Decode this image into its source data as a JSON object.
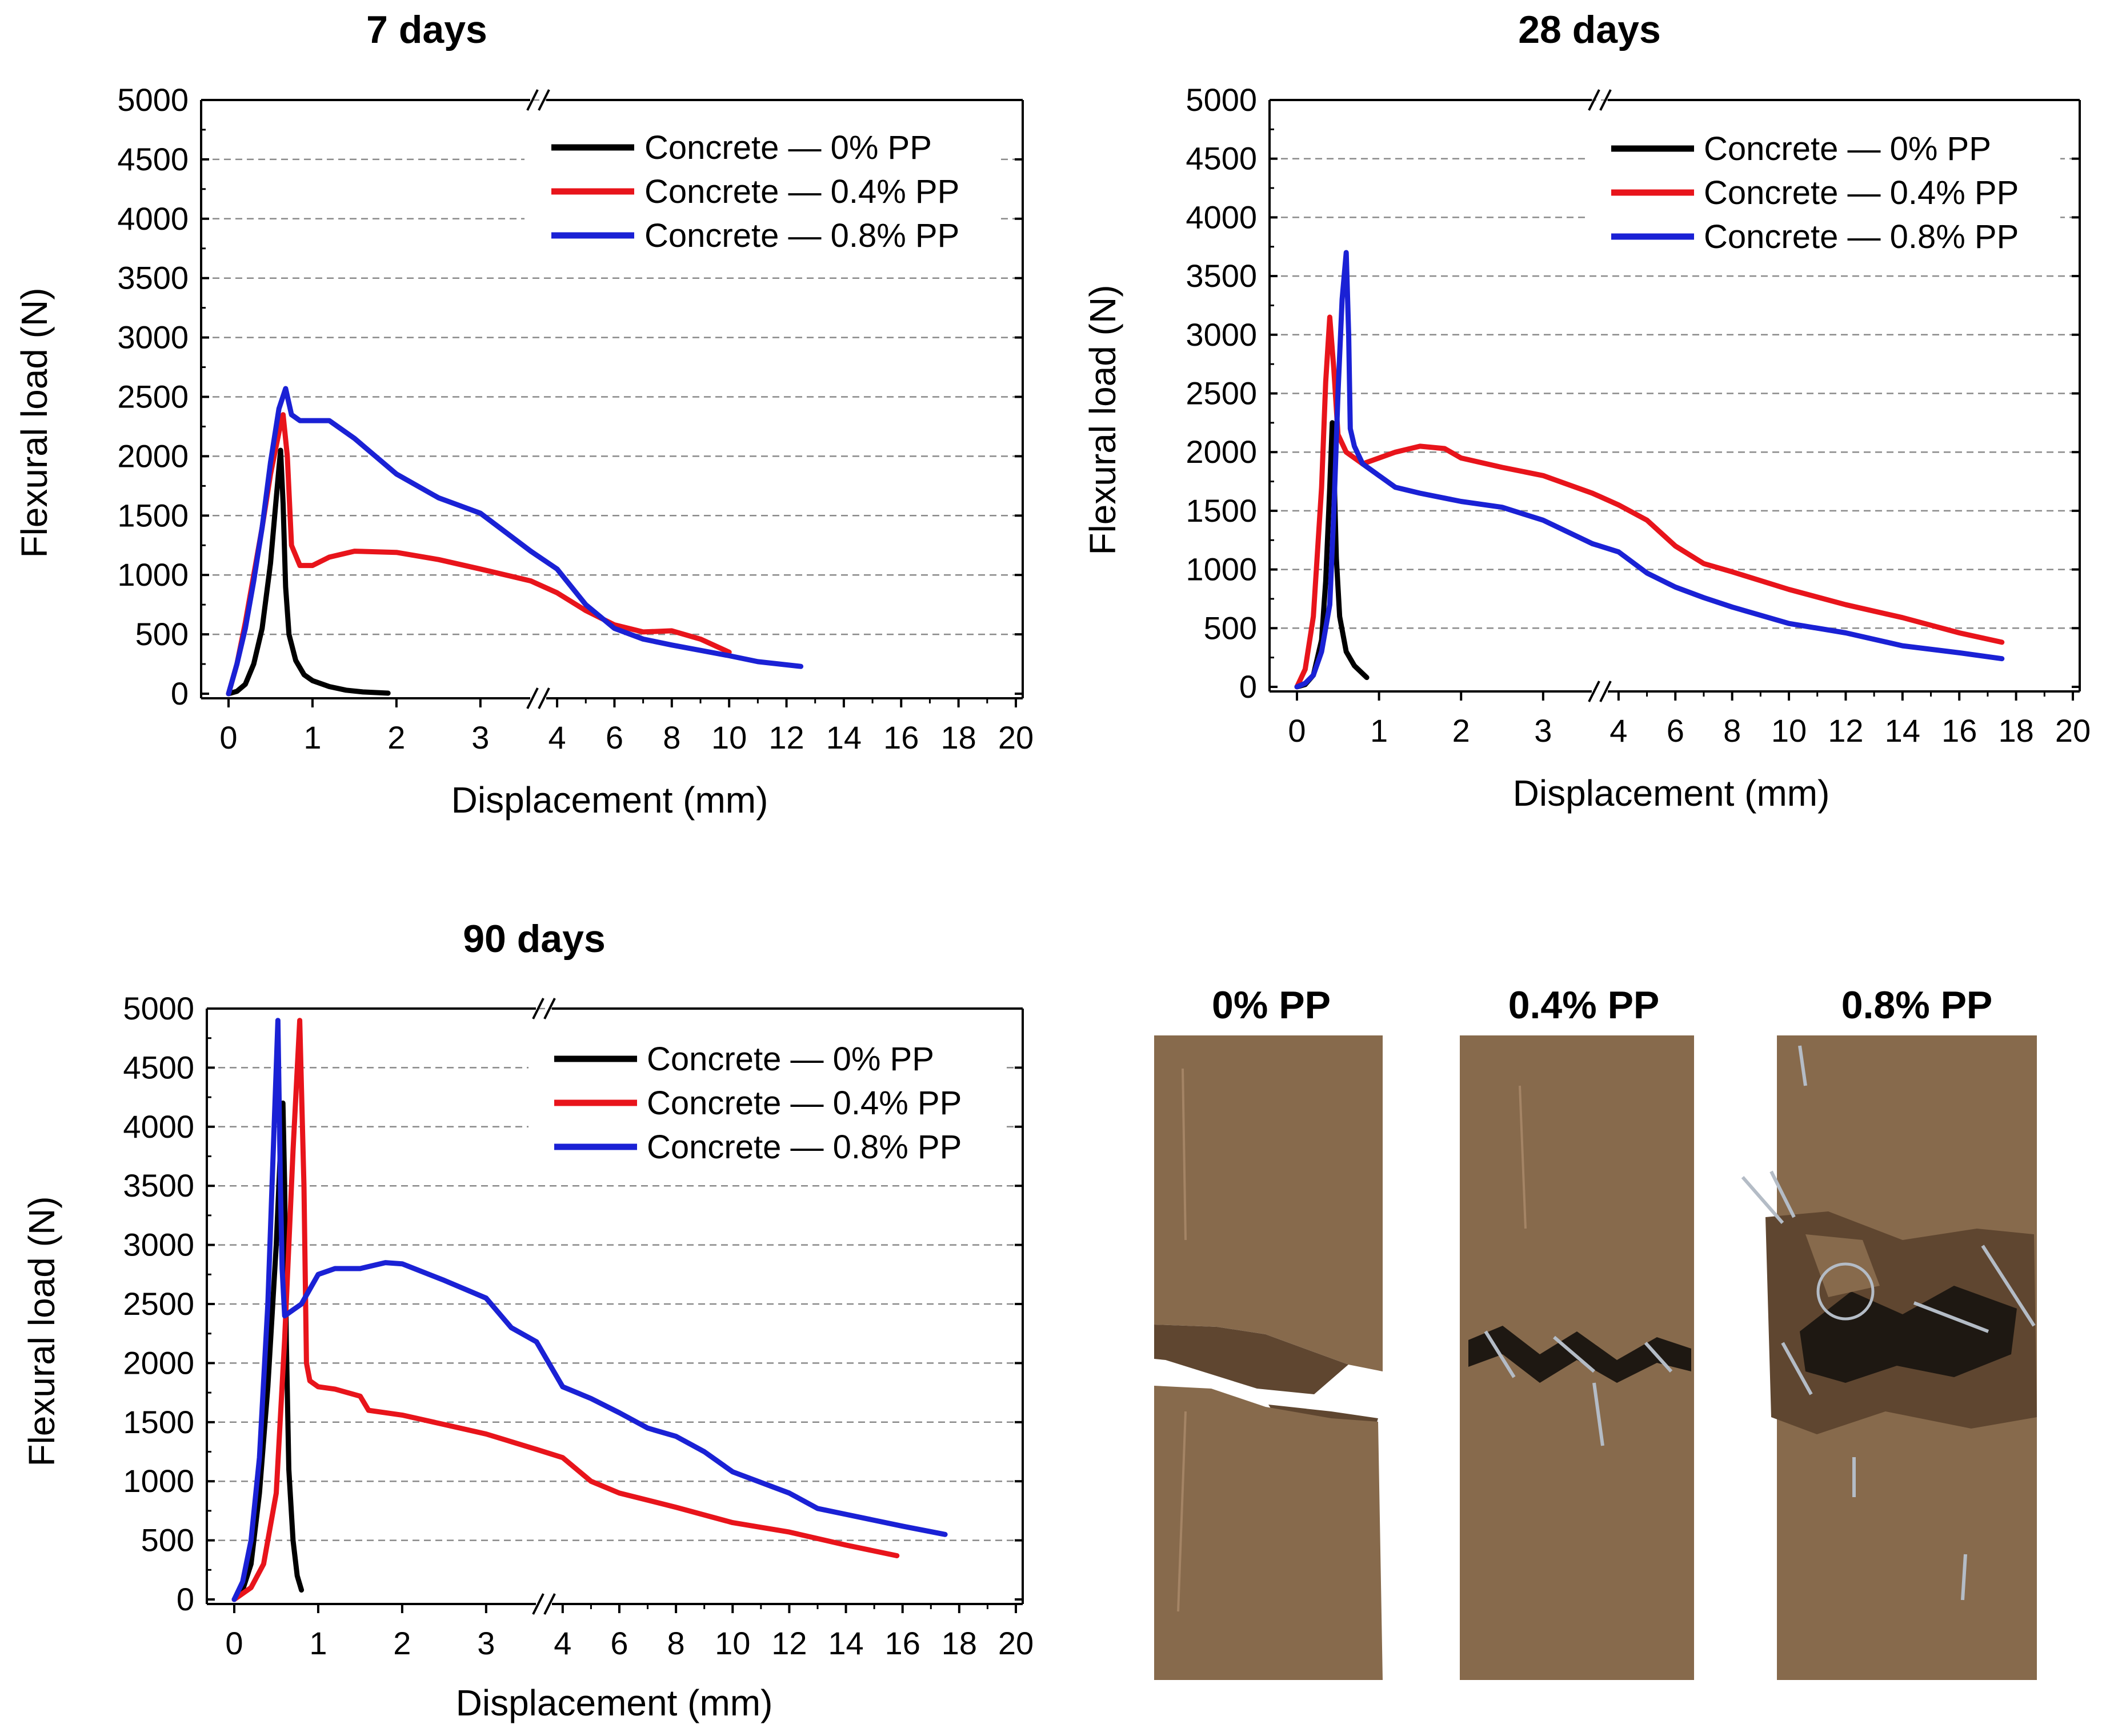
{
  "figure": {
    "photos": {
      "labels": [
        "0% PP",
        "0.4% PP",
        "0.8% PP"
      ],
      "colors": {
        "concrete_base": "#876a4c",
        "concrete_dark": "#5f4630",
        "concrete_light": "#a48465",
        "crack": "#1e1812",
        "fiber": "#b4bcc6"
      }
    }
  },
  "chart_data": [
    {
      "type": "line",
      "title": "7 days",
      "xlabel": "Displacement (mm)",
      "ylabel": "Flexural load (N)",
      "xlim": [
        0,
        20
      ],
      "x_break": {
        "left_segment": [
          0,
          3.6
        ],
        "right_segment": [
          3.6,
          20
        ],
        "left_ticks": [
          0,
          1,
          2,
          3
        ],
        "right_ticks": [
          4,
          6,
          8,
          10,
          12,
          14,
          16,
          18,
          20
        ]
      },
      "ylim": [
        0,
        5000
      ],
      "yticks": [
        0,
        500,
        1000,
        1500,
        2000,
        2500,
        3000,
        3500,
        4000,
        4500,
        5000
      ],
      "grid": "horizontal dashed",
      "legend_position": "top-right",
      "series": [
        {
          "name": "Concrete — 0% PP",
          "color": "#000000",
          "points": [
            [
              0,
              0
            ],
            [
              0.1,
              20
            ],
            [
              0.2,
              80
            ],
            [
              0.3,
              250
            ],
            [
              0.4,
              550
            ],
            [
              0.5,
              1100
            ],
            [
              0.55,
              1500
            ],
            [
              0.6,
              1900
            ],
            [
              0.62,
              2050
            ],
            [
              0.65,
              1600
            ],
            [
              0.68,
              900
            ],
            [
              0.72,
              500
            ],
            [
              0.8,
              280
            ],
            [
              0.9,
              160
            ],
            [
              1.0,
              110
            ],
            [
              1.2,
              60
            ],
            [
              1.4,
              30
            ],
            [
              1.6,
              15
            ],
            [
              1.9,
              5
            ]
          ]
        },
        {
          "name": "Concrete — 0.4% PP",
          "color": "#e8141b",
          "points": [
            [
              0,
              0
            ],
            [
              0.1,
              250
            ],
            [
              0.2,
              600
            ],
            [
              0.3,
              1000
            ],
            [
              0.4,
              1400
            ],
            [
              0.5,
              1850
            ],
            [
              0.6,
              2200
            ],
            [
              0.65,
              2350
            ],
            [
              0.7,
              2000
            ],
            [
              0.75,
              1250
            ],
            [
              0.85,
              1080
            ],
            [
              1.0,
              1080
            ],
            [
              1.2,
              1150
            ],
            [
              1.5,
              1200
            ],
            [
              2.0,
              1190
            ],
            [
              2.5,
              1130
            ],
            [
              3.0,
              1050
            ],
            [
              3.6,
              950
            ],
            [
              4.0,
              850
            ],
            [
              5.0,
              700
            ],
            [
              6.0,
              580
            ],
            [
              7.0,
              520
            ],
            [
              8.0,
              530
            ],
            [
              9.0,
              460
            ],
            [
              10.0,
              350
            ]
          ]
        },
        {
          "name": "Concrete — 0.8% PP",
          "color": "#1a21d5",
          "points": [
            [
              0,
              0
            ],
            [
              0.1,
              250
            ],
            [
              0.2,
              550
            ],
            [
              0.3,
              950
            ],
            [
              0.4,
              1400
            ],
            [
              0.5,
              1950
            ],
            [
              0.6,
              2400
            ],
            [
              0.68,
              2570
            ],
            [
              0.75,
              2350
            ],
            [
              0.85,
              2300
            ],
            [
              1.0,
              2300
            ],
            [
              1.2,
              2300
            ],
            [
              1.5,
              2150
            ],
            [
              2.0,
              1850
            ],
            [
              2.5,
              1650
            ],
            [
              3.0,
              1520
            ],
            [
              3.6,
              1200
            ],
            [
              4.0,
              1050
            ],
            [
              5.0,
              750
            ],
            [
              6.0,
              550
            ],
            [
              7.0,
              460
            ],
            [
              8.0,
              410
            ],
            [
              10.0,
              320
            ],
            [
              11.0,
              270
            ],
            [
              12.5,
              230
            ]
          ]
        }
      ]
    },
    {
      "type": "line",
      "title": "28 days",
      "xlabel": "Displacement (mm)",
      "ylabel": "Flexural load (N)",
      "xlim": [
        0,
        20
      ],
      "x_break": {
        "left_segment": [
          0,
          3.6
        ],
        "right_segment": [
          3.6,
          20
        ],
        "left_ticks": [
          0,
          1,
          2,
          3
        ],
        "right_ticks": [
          4,
          6,
          8,
          10,
          12,
          14,
          16,
          18,
          20
        ]
      },
      "ylim": [
        0,
        5000
      ],
      "yticks": [
        0,
        500,
        1000,
        1500,
        2000,
        2500,
        3000,
        3500,
        4000,
        4500,
        5000
      ],
      "grid": "horizontal dashed",
      "legend_position": "top-right",
      "series": [
        {
          "name": "Concrete — 0% PP",
          "color": "#000000",
          "points": [
            [
              0,
              0
            ],
            [
              0.1,
              20
            ],
            [
              0.2,
              100
            ],
            [
              0.3,
              400
            ],
            [
              0.35,
              900
            ],
            [
              0.4,
              1700
            ],
            [
              0.43,
              2250
            ],
            [
              0.45,
              1900
            ],
            [
              0.48,
              1100
            ],
            [
              0.52,
              600
            ],
            [
              0.6,
              300
            ],
            [
              0.7,
              180
            ],
            [
              0.85,
              80
            ]
          ]
        },
        {
          "name": "Concrete — 0.4% PP",
          "color": "#e8141b",
          "points": [
            [
              0,
              0
            ],
            [
              0.1,
              150
            ],
            [
              0.2,
              600
            ],
            [
              0.3,
              1700
            ],
            [
              0.35,
              2600
            ],
            [
              0.4,
              3150
            ],
            [
              0.45,
              2700
            ],
            [
              0.5,
              2150
            ],
            [
              0.6,
              2000
            ],
            [
              0.8,
              1900
            ],
            [
              1.0,
              1950
            ],
            [
              1.2,
              2000
            ],
            [
              1.5,
              2050
            ],
            [
              1.8,
              2030
            ],
            [
              2.0,
              1950
            ],
            [
              2.5,
              1870
            ],
            [
              3.0,
              1800
            ],
            [
              3.6,
              1650
            ],
            [
              4.0,
              1550
            ],
            [
              5.0,
              1420
            ],
            [
              6.0,
              1200
            ],
            [
              7.0,
              1050
            ],
            [
              8.0,
              980
            ],
            [
              10.0,
              830
            ],
            [
              12.0,
              700
            ],
            [
              14.0,
              590
            ],
            [
              16.0,
              460
            ],
            [
              17.5,
              380
            ]
          ]
        },
        {
          "name": "Concrete — 0.8% PP",
          "color": "#1a21d5",
          "points": [
            [
              0,
              0
            ],
            [
              0.1,
              30
            ],
            [
              0.2,
              100
            ],
            [
              0.3,
              300
            ],
            [
              0.4,
              700
            ],
            [
              0.45,
              1500
            ],
            [
              0.5,
              2500
            ],
            [
              0.55,
              3300
            ],
            [
              0.6,
              3700
            ],
            [
              0.63,
              3000
            ],
            [
              0.65,
              2200
            ],
            [
              0.7,
              2050
            ],
            [
              0.8,
              1900
            ],
            [
              1.0,
              1800
            ],
            [
              1.2,
              1700
            ],
            [
              1.5,
              1650
            ],
            [
              2.0,
              1580
            ],
            [
              2.5,
              1530
            ],
            [
              3.0,
              1420
            ],
            [
              3.6,
              1220
            ],
            [
              4.0,
              1150
            ],
            [
              5.0,
              970
            ],
            [
              6.0,
              850
            ],
            [
              7.0,
              760
            ],
            [
              8.0,
              680
            ],
            [
              10.0,
              540
            ],
            [
              12.0,
              460
            ],
            [
              14.0,
              350
            ],
            [
              16.0,
              290
            ],
            [
              17.5,
              240
            ]
          ]
        }
      ]
    },
    {
      "type": "line",
      "title": "90 days",
      "xlabel": "Displacement (mm)",
      "ylabel": "Flexural load (N)",
      "xlim": [
        0,
        20
      ],
      "x_break": {
        "left_segment": [
          0,
          3.6
        ],
        "right_segment": [
          3.6,
          20
        ],
        "left_ticks": [
          0,
          1,
          2,
          3
        ],
        "right_ticks": [
          4,
          6,
          8,
          10,
          12,
          14,
          16,
          18,
          20
        ]
      },
      "ylim": [
        0,
        5000
      ],
      "yticks": [
        0,
        500,
        1000,
        1500,
        2000,
        2500,
        3000,
        3500,
        4000,
        4500,
        5000
      ],
      "grid": "horizontal dashed",
      "legend_position": "top-right",
      "series": [
        {
          "name": "Concrete — 0% PP",
          "color": "#000000",
          "points": [
            [
              0,
              0
            ],
            [
              0.1,
              80
            ],
            [
              0.2,
              300
            ],
            [
              0.3,
              900
            ],
            [
              0.4,
              1800
            ],
            [
              0.5,
              3000
            ],
            [
              0.55,
              3800
            ],
            [
              0.58,
              4200
            ],
            [
              0.6,
              3500
            ],
            [
              0.62,
              2200
            ],
            [
              0.65,
              1100
            ],
            [
              0.7,
              500
            ],
            [
              0.75,
              200
            ],
            [
              0.8,
              80
            ]
          ]
        },
        {
          "name": "Concrete — 0.4% PP",
          "color": "#e8141b",
          "points": [
            [
              0,
              0
            ],
            [
              0.2,
              100
            ],
            [
              0.35,
              300
            ],
            [
              0.5,
              900
            ],
            [
              0.6,
              2200
            ],
            [
              0.7,
              3800
            ],
            [
              0.78,
              4900
            ],
            [
              0.83,
              3500
            ],
            [
              0.86,
              2000
            ],
            [
              0.9,
              1850
            ],
            [
              1.0,
              1800
            ],
            [
              1.2,
              1780
            ],
            [
              1.5,
              1720
            ],
            [
              1.6,
              1600
            ],
            [
              2.0,
              1560
            ],
            [
              2.5,
              1480
            ],
            [
              3.0,
              1400
            ],
            [
              3.6,
              1270
            ],
            [
              4.0,
              1200
            ],
            [
              5.0,
              1000
            ],
            [
              6.0,
              900
            ],
            [
              8.0,
              780
            ],
            [
              10.0,
              650
            ],
            [
              12.0,
              570
            ],
            [
              14.0,
              460
            ],
            [
              15.8,
              370
            ]
          ]
        },
        {
          "name": "Concrete — 0.8% PP",
          "color": "#1a21d5",
          "points": [
            [
              0,
              0
            ],
            [
              0.1,
              150
            ],
            [
              0.2,
              500
            ],
            [
              0.3,
              1200
            ],
            [
              0.4,
              2500
            ],
            [
              0.45,
              3500
            ],
            [
              0.5,
              4500
            ],
            [
              0.52,
              4900
            ],
            [
              0.55,
              3500
            ],
            [
              0.57,
              2800
            ],
            [
              0.6,
              2400
            ],
            [
              0.8,
              2500
            ],
            [
              1.0,
              2750
            ],
            [
              1.2,
              2800
            ],
            [
              1.5,
              2800
            ],
            [
              1.8,
              2850
            ],
            [
              2.0,
              2840
            ],
            [
              2.5,
              2700
            ],
            [
              3.0,
              2550
            ],
            [
              3.3,
              2300
            ],
            [
              3.6,
              2180
            ],
            [
              4.0,
              1800
            ],
            [
              5.0,
              1700
            ],
            [
              6.0,
              1580
            ],
            [
              7.0,
              1450
            ],
            [
              8.0,
              1380
            ],
            [
              9.0,
              1250
            ],
            [
              10.0,
              1080
            ],
            [
              12.0,
              900
            ],
            [
              13.0,
              770
            ],
            [
              14.0,
              720
            ],
            [
              16.0,
              620
            ],
            [
              17.5,
              550
            ]
          ]
        }
      ]
    }
  ]
}
